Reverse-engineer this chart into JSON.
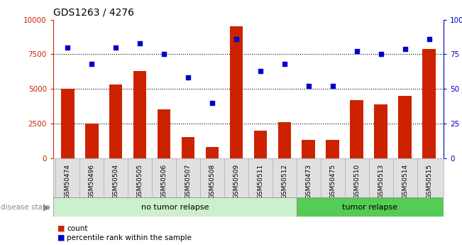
{
  "title": "GDS1263 / 4276",
  "samples": [
    "GSM50474",
    "GSM50496",
    "GSM50504",
    "GSM50505",
    "GSM50506",
    "GSM50507",
    "GSM50508",
    "GSM50509",
    "GSM50511",
    "GSM50512",
    "GSM50473",
    "GSM50475",
    "GSM50510",
    "GSM50513",
    "GSM50514",
    "GSM50515"
  ],
  "counts": [
    5000,
    2500,
    5300,
    6300,
    3500,
    1500,
    800,
    9500,
    2000,
    2600,
    1300,
    1300,
    4200,
    3900,
    4500,
    7900
  ],
  "percentiles": [
    80,
    68,
    80,
    83,
    75,
    58,
    40,
    86,
    63,
    68,
    52,
    52,
    77,
    75,
    79,
    86
  ],
  "n_no_relapse": 10,
  "n_relapse": 6,
  "bar_color": "#cc2200",
  "dot_color": "#0000cc",
  "left_yticks": [
    0,
    2500,
    5000,
    7500,
    10000
  ],
  "right_yticks": [
    0,
    25,
    50,
    75,
    100
  ],
  "ylim_left": [
    0,
    10000
  ],
  "ylim_right": [
    0,
    100
  ],
  "bg_color": "#ffffff",
  "no_relapse_bg": "#ccf0cc",
  "relapse_bg": "#55cc55",
  "title_fontsize": 10,
  "tick_fontsize": 7.5,
  "label_fontsize": 8
}
